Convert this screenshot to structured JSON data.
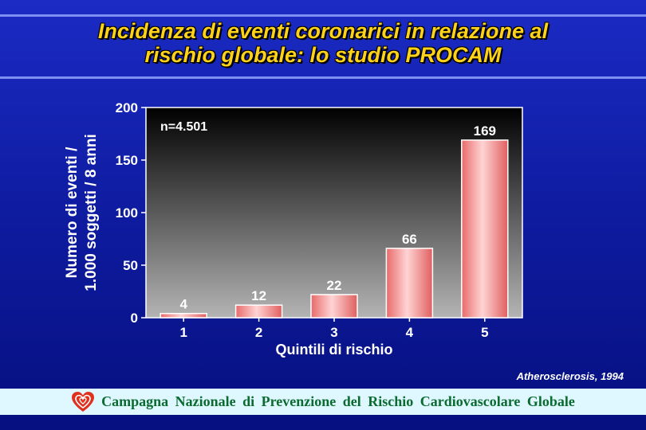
{
  "header": {
    "title_line1": "Incidenza di eventi coronarici in relazione al",
    "title_line2": "rischio globale: lo studio PROCAM"
  },
  "chart_data": {
    "type": "bar",
    "categories": [
      "1",
      "2",
      "3",
      "4",
      "5"
    ],
    "values": [
      4,
      12,
      22,
      66,
      169
    ],
    "data_labels": [
      "4",
      "12",
      "22",
      "66",
      "169"
    ],
    "xlabel": "Quintili di rischio",
    "ylabel_line1": "Numero di eventi /",
    "ylabel_line2": "1.000 soggetti / 8 anni",
    "ylim": [
      0,
      200
    ],
    "yticks": [
      0,
      50,
      100,
      150,
      200
    ],
    "annotation": "n=4.501",
    "grid": false,
    "bar_color": "#f07878",
    "plot_background": "gradient black-to-gray"
  },
  "source": "Atherosclerosis, 1994",
  "footer": {
    "text": "Campagna Nazionale di Prevenzione del Rischio Cardiovascolare Globale",
    "logo_icon": "heart-logo-icon",
    "logo_color": "#e0301e"
  }
}
